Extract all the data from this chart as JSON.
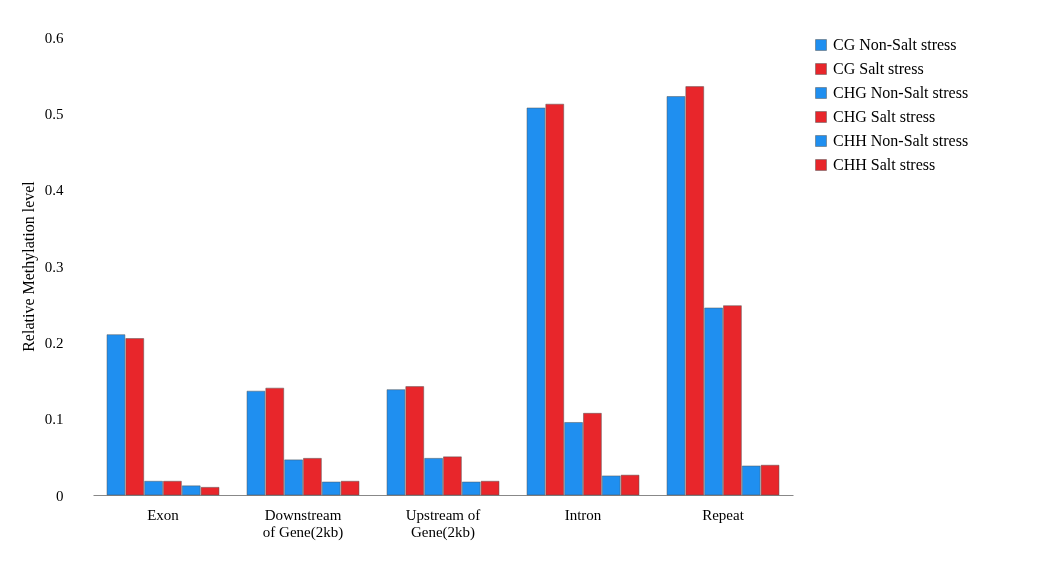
{
  "chart_data": {
    "type": "bar",
    "ylabel": "Relative Methylation level",
    "categories": [
      "Exon",
      "Downstream\nof Gene(2kb)",
      "Upstream of\nGene(2kb)",
      "Intron",
      "Repeat"
    ],
    "series": [
      {
        "name": "CG Non-Salt stress",
        "color": "#1f8ff0",
        "values": [
          0.21,
          0.136,
          0.138,
          0.507,
          0.522
        ]
      },
      {
        "name": "CG Salt stress",
        "color": "#e8262b",
        "values": [
          0.205,
          0.14,
          0.142,
          0.512,
          0.535
        ]
      },
      {
        "name": "CHG Non-Salt stress",
        "color": "#1f8ff0",
        "values": [
          0.018,
          0.046,
          0.048,
          0.095,
          0.245
        ]
      },
      {
        "name": "CHG Salt stress",
        "color": "#e8262b",
        "values": [
          0.018,
          0.048,
          0.05,
          0.107,
          0.248
        ]
      },
      {
        "name": "CHH Non-Salt stress",
        "color": "#1f8ff0",
        "values": [
          0.012,
          0.017,
          0.017,
          0.025,
          0.038
        ]
      },
      {
        "name": "CHH Salt stress",
        "color": "#e8262b",
        "values": [
          0.01,
          0.018,
          0.018,
          0.026,
          0.039
        ]
      }
    ],
    "ylim": [
      0,
      0.6
    ],
    "yticks": [
      0,
      0.1,
      0.2,
      0.3,
      0.4,
      0.5,
      0.6
    ],
    "legend": "right"
  }
}
